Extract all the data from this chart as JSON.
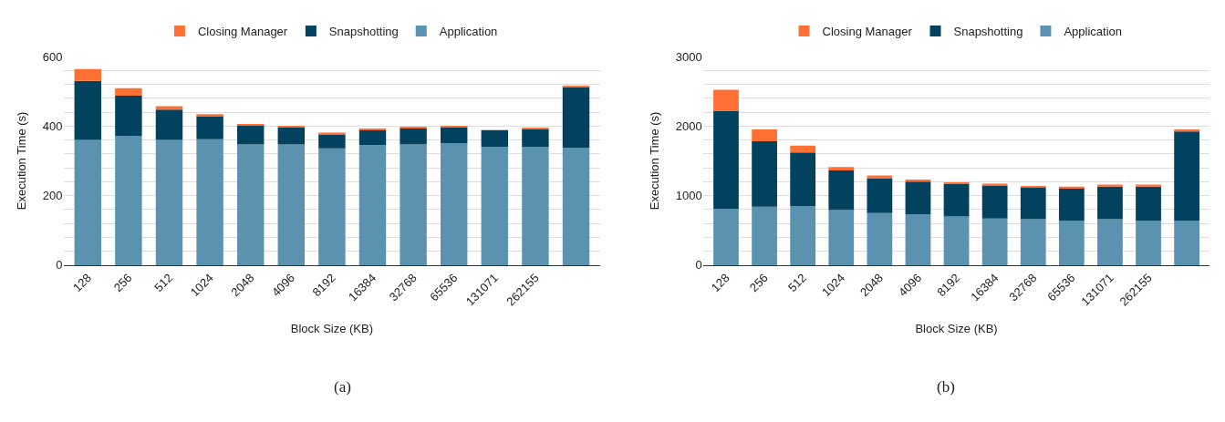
{
  "chart_data": [
    {
      "type": "bar",
      "stacked": true,
      "ylabel": "Execution Time (s)",
      "xlabel": "Block Size (KB)",
      "annotations": [
        "(a)"
      ],
      "categories": [
        "128",
        "256",
        "512",
        "1024",
        "2048",
        "4096",
        "8192",
        "16384",
        "32768",
        "65536",
        "131071",
        "262155",
        null
      ],
      "series": [
        {
          "name": "Application",
          "color": "#5a92b0",
          "values": [
            360,
            371,
            360,
            362,
            347,
            347,
            336,
            345,
            347,
            351,
            340,
            340,
            338
          ]
        },
        {
          "name": "Snapshotting",
          "color": "#02425f",
          "values": [
            170,
            116,
            87,
            67,
            56,
            50,
            41,
            44,
            47,
            46,
            48,
            51,
            174
          ]
        },
        {
          "name": "Closing Manager",
          "color": "#ff7035",
          "values": [
            34,
            22,
            10,
            5,
            3,
            3,
            4,
            4,
            3,
            3,
            0,
            4,
            4
          ]
        }
      ],
      "ylim": [
        0,
        600
      ],
      "yticks": [
        0,
        {
          "value": 40,
          "label": null
        },
        {
          "value": 80,
          "label": null
        },
        {
          "value": 120,
          "label": null
        },
        {
          "value": 160,
          "label": null
        },
        200,
        {
          "value": 240,
          "label": null
        },
        {
          "value": 280,
          "label": null
        },
        {
          "value": 320,
          "label": null
        },
        {
          "value": 360,
          "label": null
        },
        400,
        {
          "value": 440,
          "label": null
        },
        {
          "value": 480,
          "label": null
        },
        {
          "value": 520,
          "label": null
        },
        {
          "value": 560,
          "label": null
        },
        600
      ],
      "grid": "y",
      "legend": "top"
    },
    {
      "type": "bar",
      "stacked": true,
      "ylabel": "Execution Time (s)",
      "xlabel": "Block Size (KB)",
      "annotations": [
        "(b)"
      ],
      "categories": [
        "128",
        "256",
        "512",
        "1024",
        "2048",
        "4096",
        "8192",
        "16384",
        "32768",
        "65536",
        "131071",
        "262155",
        null
      ],
      "series": [
        {
          "name": "Application",
          "color": "#5a92b0",
          "values": [
            810,
            840,
            850,
            790,
            750,
            730,
            700,
            670,
            660,
            640,
            660,
            640,
            640
          ]
        },
        {
          "name": "Snapshotting",
          "color": "#02425f",
          "values": [
            1410,
            940,
            770,
            570,
            500,
            470,
            470,
            470,
            460,
            470,
            470,
            490,
            1280
          ]
        },
        {
          "name": "Closing Manager",
          "color": "#ff7035",
          "values": [
            300,
            170,
            100,
            50,
            40,
            30,
            20,
            30,
            20,
            20,
            30,
            30,
            30
          ]
        }
      ],
      "ylim": [
        0,
        3000
      ],
      "yticks": [
        0,
        {
          "value": 200,
          "label": null
        },
        {
          "value": 400,
          "label": null
        },
        {
          "value": 600,
          "label": null
        },
        {
          "value": 800,
          "label": null
        },
        1000,
        {
          "value": 1200,
          "label": null
        },
        {
          "value": 1400,
          "label": null
        },
        {
          "value": 1600,
          "label": null
        },
        {
          "value": 1800,
          "label": null
        },
        2000,
        {
          "value": 2200,
          "label": null
        },
        {
          "value": 2400,
          "label": null
        },
        {
          "value": 2600,
          "label": null
        },
        {
          "value": 2800,
          "label": null
        },
        3000
      ],
      "grid": "y",
      "legend": "top"
    }
  ]
}
